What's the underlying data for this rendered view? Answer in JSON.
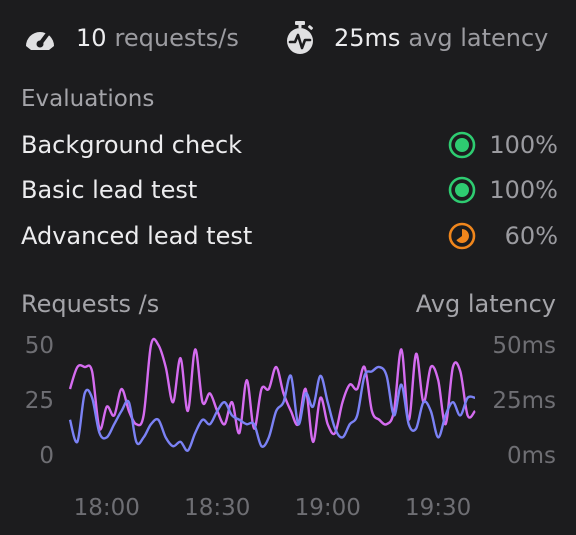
{
  "stats": {
    "requests_value": "10",
    "requests_unit": "requests/s",
    "latency_value": "25ms",
    "latency_unit": "avg latency",
    "requests_icon": "gauge-icon",
    "latency_icon": "stopwatch-icon"
  },
  "evaluations": {
    "title": "Evaluations",
    "items": [
      {
        "name": "Background check",
        "percent": "100%",
        "status": "complete",
        "color": "#2ecc71"
      },
      {
        "name": "Basic lead test",
        "percent": "100%",
        "status": "complete",
        "color": "#2ecc71"
      },
      {
        "name": "Advanced lead test",
        "percent": "60%",
        "status": "in-progress",
        "color": "#f0861c"
      }
    ]
  },
  "chart_data": {
    "type": "line",
    "left_axis_title": "Requests /s",
    "right_axis_title": "Avg latency",
    "y_left_ticks": [
      "50",
      "25",
      "0"
    ],
    "y_right_ticks": [
      "50ms",
      "25ms",
      "0ms"
    ],
    "ylim": [
      0,
      50
    ],
    "x_ticks": [
      "18:00",
      "18:30",
      "19:00",
      "19:30"
    ],
    "x_tick_positions": [
      0,
      30,
      60,
      90
    ],
    "xlim": [
      -10,
      100
    ],
    "series": [
      {
        "color": "#d56cf0",
        "x": [
          -10,
          -8,
          -6,
          -4,
          -2,
          0,
          2,
          4,
          6,
          8,
          10,
          12,
          14,
          16,
          18,
          20,
          22,
          24,
          26,
          28,
          30,
          32,
          34,
          36,
          38,
          40,
          42,
          44,
          46,
          48,
          50,
          52,
          54,
          56,
          58,
          60,
          62,
          64,
          66,
          68,
          70,
          72,
          74,
          76,
          78,
          80,
          82,
          84,
          86,
          88,
          90,
          92,
          94,
          96,
          98,
          100
        ],
        "values": [
          30,
          40,
          40,
          38,
          12,
          22,
          18,
          30,
          20,
          14,
          18,
          50,
          50,
          40,
          24,
          44,
          20,
          48,
          24,
          28,
          20,
          14,
          24,
          10,
          34,
          12,
          30,
          30,
          40,
          28,
          20,
          14,
          30,
          6,
          26,
          14,
          10,
          24,
          32,
          30,
          40,
          20,
          16,
          14,
          20,
          48,
          16,
          46,
          24,
          40,
          34,
          14,
          40,
          38,
          18,
          20
        ]
      },
      {
        "color": "#7b82f5",
        "x": [
          -10,
          -8,
          -6,
          -4,
          -2,
          0,
          2,
          4,
          6,
          8,
          10,
          12,
          14,
          16,
          18,
          20,
          22,
          24,
          26,
          28,
          30,
          32,
          34,
          36,
          38,
          40,
          42,
          44,
          46,
          48,
          50,
          52,
          54,
          56,
          58,
          60,
          62,
          64,
          66,
          68,
          70,
          72,
          74,
          76,
          78,
          80,
          82,
          84,
          86,
          88,
          90,
          92,
          94,
          96,
          98,
          100
        ],
        "values": [
          16,
          6,
          28,
          26,
          10,
          8,
          14,
          20,
          24,
          6,
          8,
          14,
          16,
          8,
          4,
          6,
          2,
          10,
          16,
          14,
          20,
          24,
          18,
          16,
          14,
          14,
          4,
          8,
          20,
          24,
          36,
          14,
          28,
          22,
          36,
          24,
          12,
          8,
          14,
          18,
          36,
          38,
          40,
          36,
          18,
          32,
          14,
          12,
          24,
          20,
          8,
          18,
          24,
          18,
          26,
          26
        ]
      }
    ]
  }
}
